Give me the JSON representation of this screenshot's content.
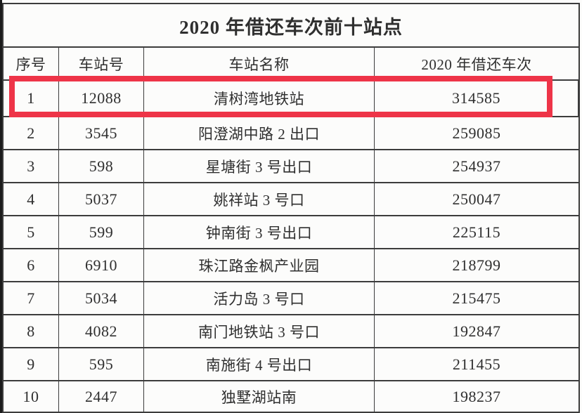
{
  "title": "2020 年借还车次前十站点",
  "table": {
    "headers": [
      "序号",
      "车站号",
      "车站名称",
      "2020 年借还车次"
    ],
    "rows": [
      {
        "rank": "1",
        "station_id": "12088",
        "station_name": "清树湾地铁站",
        "count": "314585",
        "highlighted": true
      },
      {
        "rank": "2",
        "station_id": "3545",
        "station_name": "阳澄湖中路 2 出口",
        "count": "259085",
        "highlighted": false
      },
      {
        "rank": "3",
        "station_id": "598",
        "station_name": "星塘街 3 号出口",
        "count": "254937",
        "highlighted": false
      },
      {
        "rank": "4",
        "station_id": "5037",
        "station_name": "姚祥站 3 号口",
        "count": "250047",
        "highlighted": false
      },
      {
        "rank": "5",
        "station_id": "599",
        "station_name": "钟南街 3 号出口",
        "count": "225115",
        "highlighted": false
      },
      {
        "rank": "6",
        "station_id": "6910",
        "station_name": "珠江路金枫产业园",
        "count": "218799",
        "highlighted": false
      },
      {
        "rank": "7",
        "station_id": "5034",
        "station_name": "活力岛 3 号口",
        "count": "215475",
        "highlighted": false
      },
      {
        "rank": "8",
        "station_id": "4082",
        "station_name": "南门地铁站 3 号口",
        "count": "192847",
        "highlighted": false
      },
      {
        "rank": "9",
        "station_id": "595",
        "station_name": "南施街 4 号出口",
        "count": "211455",
        "highlighted": false
      },
      {
        "rank": "10",
        "station_id": "2447",
        "station_name": "独墅湖站南",
        "count": "198237",
        "highlighted": false
      }
    ]
  },
  "colors": {
    "highlight_border": "#ee3448",
    "table_border": "#3c3c3c",
    "text": "#2f2f2f",
    "background": "#fcfcfb"
  },
  "chart_data": {
    "type": "table",
    "title": "2020 年借还车次前十站点",
    "columns": [
      "序号",
      "车站号",
      "车站名称",
      "2020 年借还车次"
    ],
    "rows": [
      [
        1,
        12088,
        "清树湾地铁站",
        314585
      ],
      [
        2,
        3545,
        "阳澄湖中路 2 出口",
        259085
      ],
      [
        3,
        598,
        "星塘街 3 号出口",
        254937
      ],
      [
        4,
        5037,
        "姚祥站 3 号口",
        250047
      ],
      [
        5,
        599,
        "钟南街 3 号出口",
        225115
      ],
      [
        6,
        6910,
        "珠江路金枫产业园",
        218799
      ],
      [
        7,
        5034,
        "活力岛 3 号口",
        215475
      ],
      [
        8,
        4082,
        "南门地铁站 3 号口",
        192847
      ],
      [
        9,
        595,
        "南施街 4 号出口",
        211455
      ],
      [
        10,
        2447,
        "独墅湖站南",
        198237
      ]
    ],
    "annotations": [
      "row 1 outlined with thick red rectangle"
    ]
  }
}
